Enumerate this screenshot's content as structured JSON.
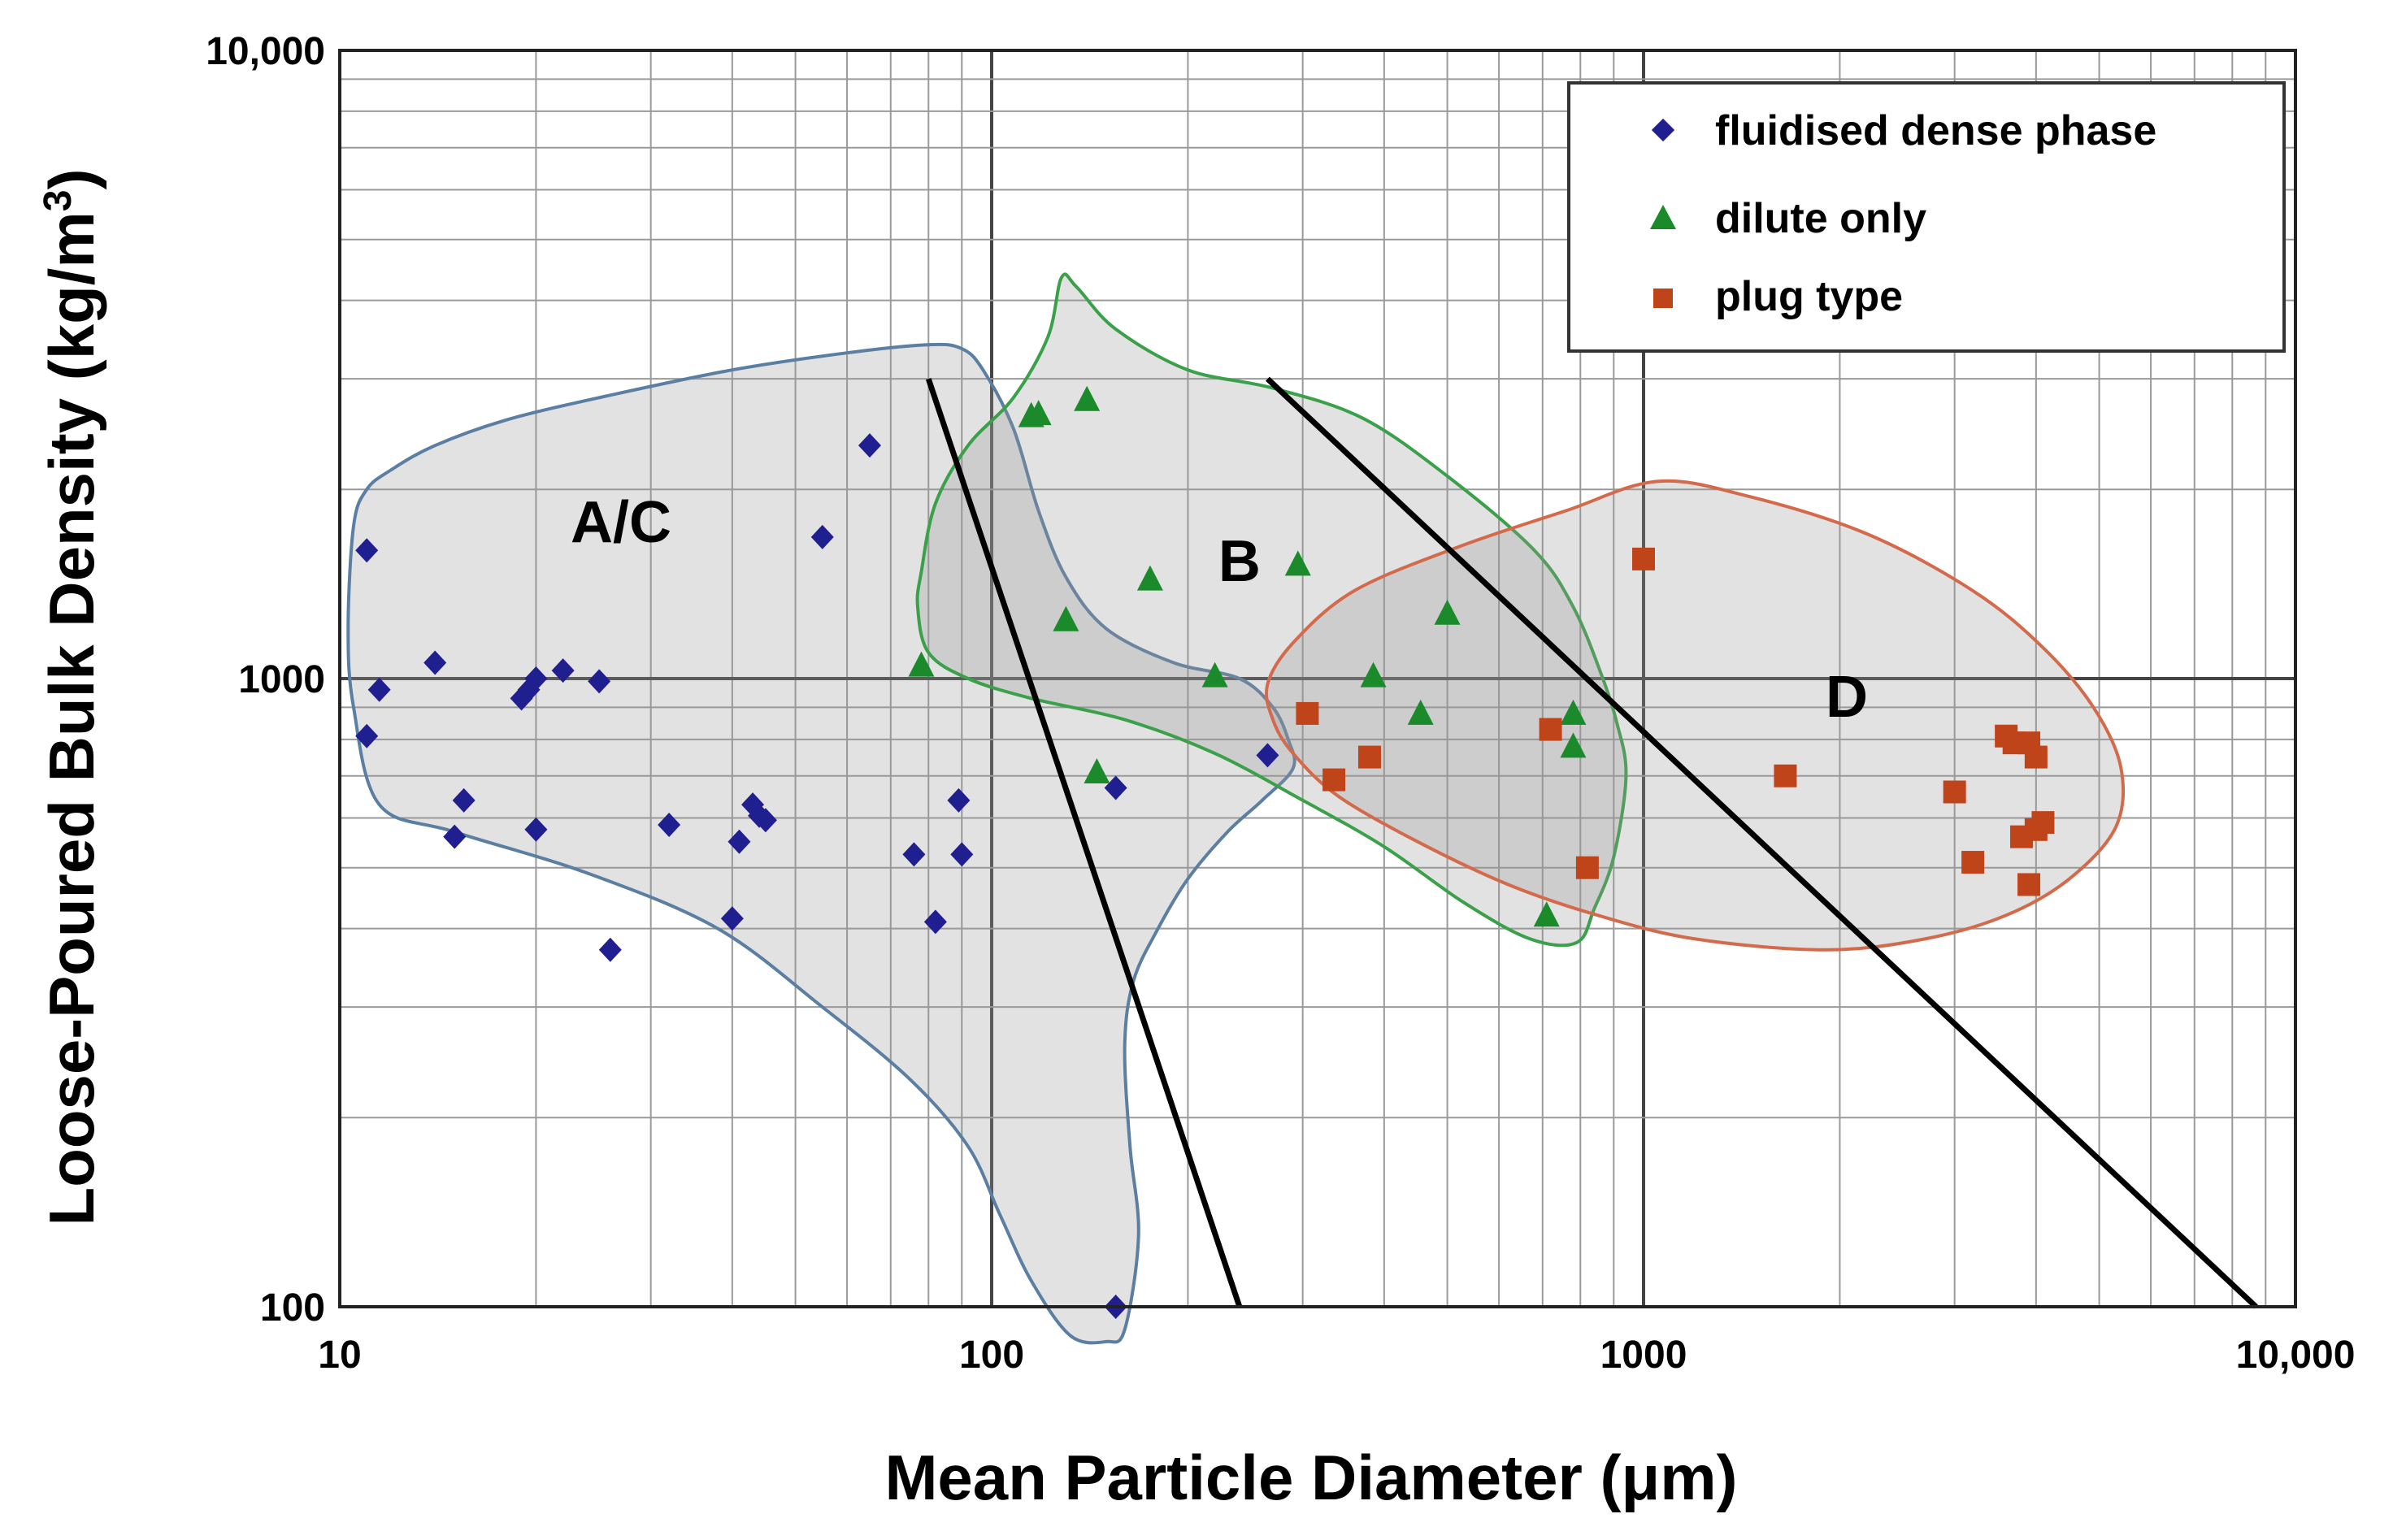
{
  "chart_data": {
    "type": "scatter",
    "xscale": "log",
    "yscale": "log",
    "xlim": [
      10,
      10000
    ],
    "ylim": [
      100,
      10000
    ],
    "xlabel": "Mean Particle Diameter (μm)",
    "ylabel_main": "Loose-Poured Bulk Density (kg/m",
    "ylabel_sup": "3",
    "ylabel_close": ")",
    "x_ticks": [
      10,
      100,
      1000,
      10000
    ],
    "x_tick_labels": [
      "10",
      "100",
      "1000",
      "10,000"
    ],
    "y_ticks": [
      100,
      1000,
      10000
    ],
    "y_tick_labels": [
      "100",
      "1000",
      "10,000"
    ],
    "grid": true,
    "legend_position": "top-right",
    "series": [
      {
        "name": "fluidised dense phase",
        "marker": "diamond",
        "color": "#1f1f8f",
        "points": [
          [
            11,
            1600
          ],
          [
            11,
            810
          ],
          [
            11.5,
            960
          ],
          [
            14,
            1060
          ],
          [
            15,
            560
          ],
          [
            15.5,
            640
          ],
          [
            19,
            930
          ],
          [
            19.5,
            960
          ],
          [
            20,
            1000
          ],
          [
            20,
            575
          ],
          [
            22,
            1030
          ],
          [
            25,
            990
          ],
          [
            26,
            370
          ],
          [
            32,
            585
          ],
          [
            40,
            415
          ],
          [
            41,
            550
          ],
          [
            43,
            630
          ],
          [
            44,
            605
          ],
          [
            45,
            595
          ],
          [
            55,
            1680
          ],
          [
            65,
            2350
          ],
          [
            76,
            525
          ],
          [
            82,
            410
          ],
          [
            89,
            640
          ],
          [
            90,
            525
          ],
          [
            155,
            670
          ],
          [
            265,
            755
          ],
          [
            155,
            100
          ]
        ]
      },
      {
        "name": "dilute only",
        "marker": "triangle",
        "color": "#1a8a2a",
        "points": [
          [
            78,
            1050
          ],
          [
            115,
            2620
          ],
          [
            118,
            2640
          ],
          [
            140,
            2780
          ],
          [
            130,
            1240
          ],
          [
            145,
            710
          ],
          [
            175,
            1440
          ],
          [
            220,
            1010
          ],
          [
            295,
            1520
          ],
          [
            385,
            1010
          ],
          [
            455,
            880
          ],
          [
            500,
            1270
          ],
          [
            710,
            420
          ],
          [
            780,
            880
          ],
          [
            780,
            780
          ]
        ]
      },
      {
        "name": "plug type",
        "marker": "square",
        "color": "#c0441a",
        "points": [
          [
            1000,
            1550
          ],
          [
            305,
            880
          ],
          [
            335,
            690
          ],
          [
            380,
            750
          ],
          [
            720,
            830
          ],
          [
            820,
            500
          ],
          [
            1650,
            700
          ],
          [
            3000,
            660
          ],
          [
            3200,
            510
          ],
          [
            3600,
            810
          ],
          [
            3700,
            790
          ],
          [
            3900,
            790
          ],
          [
            4000,
            750
          ],
          [
            3800,
            560
          ],
          [
            4000,
            575
          ],
          [
            4100,
            590
          ],
          [
            3900,
            470
          ]
        ]
      }
    ],
    "regions": [
      {
        "label": "A/C",
        "x": 27,
        "y": 1650
      },
      {
        "label": "B",
        "x": 240,
        "y": 1430
      },
      {
        "label": "D",
        "x": 2050,
        "y": 870
      }
    ],
    "boundary_lines": [
      {
        "from": [
          80,
          3000
        ],
        "to": [
          240,
          100
        ]
      },
      {
        "from": [
          265,
          3000
        ],
        "to": [
          8700,
          100
        ]
      }
    ],
    "envelopes": [
      {
        "name": "A/C region",
        "stroke": "#5b7fa3",
        "points": [
          [
            10.5,
            1750
          ],
          [
            11,
            2000
          ],
          [
            12,
            2150
          ],
          [
            14,
            2350
          ],
          [
            18,
            2580
          ],
          [
            25,
            2800
          ],
          [
            40,
            3100
          ],
          [
            60,
            3300
          ],
          [
            80,
            3400
          ],
          [
            90,
            3350
          ],
          [
            97,
            3100
          ],
          [
            108,
            2500
          ],
          [
            118,
            1850
          ],
          [
            130,
            1450
          ],
          [
            150,
            1200
          ],
          [
            190,
            1060
          ],
          [
            240,
            1000
          ],
          [
            270,
            900
          ],
          [
            285,
            800
          ],
          [
            290,
            720
          ],
          [
            260,
            640
          ],
          [
            230,
            570
          ],
          [
            200,
            480
          ],
          [
            180,
            400
          ],
          [
            165,
            330
          ],
          [
            160,
            260
          ],
          [
            163,
            180
          ],
          [
            168,
            130
          ],
          [
            160,
            92
          ],
          [
            150,
            88
          ],
          [
            132,
            90
          ],
          [
            115,
            110
          ],
          [
            103,
            140
          ],
          [
            92,
            180
          ],
          [
            75,
            230
          ],
          [
            55,
            300
          ],
          [
            38,
            400
          ],
          [
            24,
            490
          ],
          [
            15,
            570
          ],
          [
            11.5,
            630
          ],
          [
            10.5,
            900
          ],
          [
            10.3,
            1200
          ],
          [
            10.5,
            1750
          ]
        ]
      },
      {
        "name": "B region",
        "stroke": "#3aa049",
        "points": [
          [
            78,
            1480
          ],
          [
            82,
            1900
          ],
          [
            92,
            2350
          ],
          [
            108,
            2800
          ],
          [
            122,
            3500
          ],
          [
            128,
            4350
          ],
          [
            135,
            4200
          ],
          [
            155,
            3600
          ],
          [
            200,
            3100
          ],
          [
            270,
            2900
          ],
          [
            370,
            2600
          ],
          [
            500,
            2100
          ],
          [
            680,
            1600
          ],
          [
            780,
            1300
          ],
          [
            860,
            1020
          ],
          [
            910,
            850
          ],
          [
            940,
            700
          ],
          [
            900,
            520
          ],
          [
            840,
            430
          ],
          [
            790,
            380
          ],
          [
            670,
            385
          ],
          [
            530,
            440
          ],
          [
            400,
            540
          ],
          [
            300,
            640
          ],
          [
            220,
            760
          ],
          [
            160,
            860
          ],
          [
            115,
            930
          ],
          [
            92,
            1000
          ],
          [
            80,
            1100
          ],
          [
            77,
            1300
          ],
          [
            78,
            1480
          ]
        ]
      },
      {
        "name": "D region",
        "stroke": "#d46a4c",
        "points": [
          [
            265,
            980
          ],
          [
            290,
            1140
          ],
          [
            360,
            1380
          ],
          [
            520,
            1620
          ],
          [
            760,
            1850
          ],
          [
            1050,
            2060
          ],
          [
            1450,
            1950
          ],
          [
            2200,
            1700
          ],
          [
            3200,
            1380
          ],
          [
            4100,
            1120
          ],
          [
            4900,
            900
          ],
          [
            5400,
            720
          ],
          [
            5300,
            580
          ],
          [
            4500,
            480
          ],
          [
            3600,
            420
          ],
          [
            2700,
            385
          ],
          [
            1900,
            370
          ],
          [
            1200,
            385
          ],
          [
            850,
            420
          ],
          [
            620,
            470
          ],
          [
            450,
            550
          ],
          [
            340,
            650
          ],
          [
            290,
            760
          ],
          [
            270,
            860
          ],
          [
            265,
            980
          ]
        ]
      }
    ]
  }
}
